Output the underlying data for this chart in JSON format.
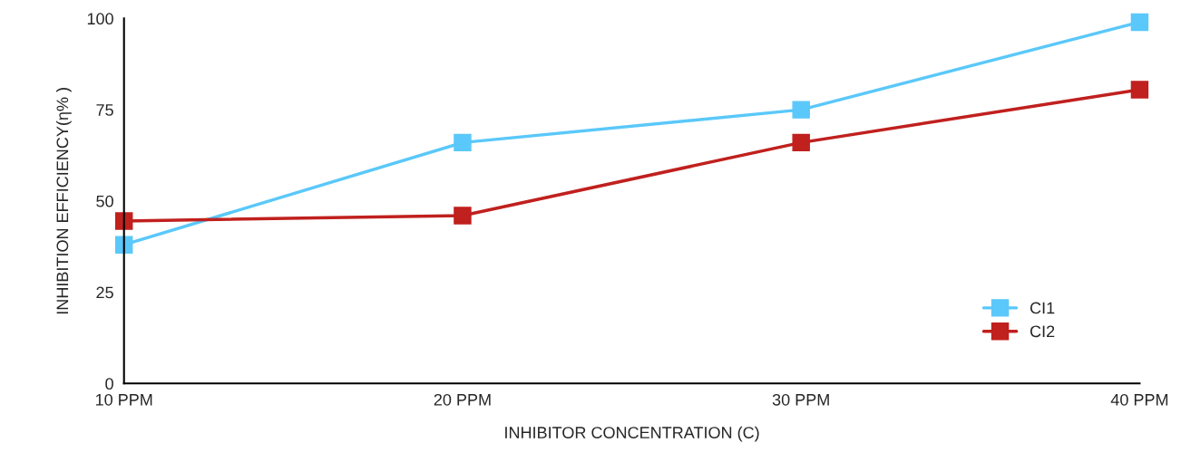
{
  "chart_data": {
    "type": "line",
    "xlabel": "INHIBITOR CONCENTRATION (C)",
    "ylabel": "INHIBITION EFFICIENCY(η% )",
    "categories": [
      "10 PPM",
      "20 PPM",
      "30 PPM",
      "40 PPM"
    ],
    "series": [
      {
        "name": "CI1",
        "color": "#5ac8fa",
        "values": [
          38,
          66,
          75,
          99
        ]
      },
      {
        "name": "CI2",
        "color": "#c0201e",
        "values": [
          44.5,
          46,
          66,
          80.5
        ]
      }
    ],
    "ylim": [
      0,
      100
    ],
    "yticks": [
      0,
      25,
      50,
      75,
      100
    ],
    "grid": false,
    "legend": "bottom right",
    "marker": "square",
    "line_style": "solid"
  }
}
